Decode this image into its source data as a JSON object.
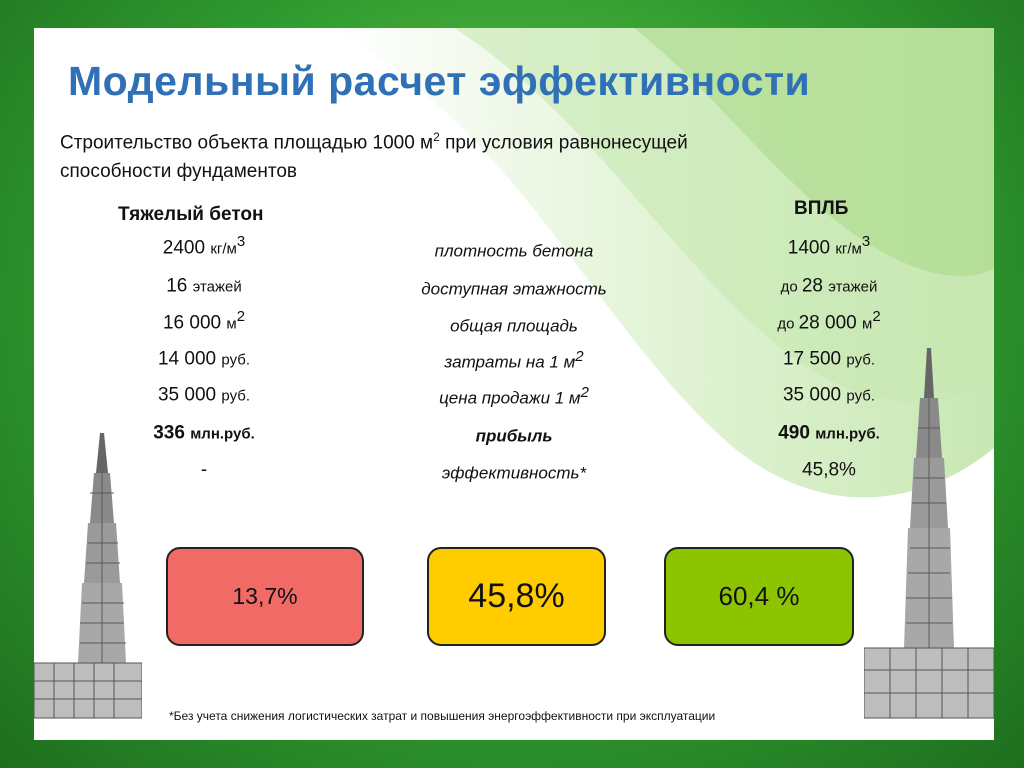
{
  "title": "Модельный расчет эффективности",
  "subtitle": {
    "line1_before": "Строительство объекта площадью 1000 м",
    "line1_sup": "2",
    "line1_after": " при условия равнонесущей",
    "line2": "способности фундаментов"
  },
  "columns": {
    "left": "Тяжелый бетон",
    "right": "ВПЛБ"
  },
  "rows": [
    {
      "left_num": "2400 ",
      "left_unit": "кг/м",
      "left_sup": "3",
      "mid": "плотность бетона",
      "mid_sup": "",
      "right_prefix": "",
      "right_num": "1400 ",
      "right_unit": "кг/м",
      "right_sup": "3"
    },
    {
      "left_num": "16 ",
      "left_unit": "этажей",
      "left_sup": "",
      "mid": "доступная этажность",
      "mid_sup": "",
      "right_prefix": "до ",
      "right_num": "28 ",
      "right_unit": "этажей",
      "right_sup": ""
    },
    {
      "left_num": "16 000 ",
      "left_unit": "м",
      "left_sup": "2",
      "mid": "общая площадь",
      "mid_sup": "",
      "right_prefix": "до ",
      "right_num": "28 000 ",
      "right_unit": "м",
      "right_sup": "2"
    },
    {
      "left_num": "14 000 ",
      "left_unit": "руб.",
      "left_sup": "",
      "mid": "затраты на 1 м",
      "mid_sup": "2",
      "right_prefix": "",
      "right_num": "17 500 ",
      "right_unit": "руб.",
      "right_sup": ""
    },
    {
      "left_num": "35 000 ",
      "left_unit": "руб.",
      "left_sup": "",
      "mid": "цена продажи 1 м",
      "mid_sup": "2",
      "right_prefix": "",
      "right_num": "35 000 ",
      "right_unit": "руб.",
      "right_sup": ""
    },
    {
      "left_num": "336 ",
      "left_unit": "млн.руб.",
      "left_sup": "",
      "mid": "прибыль",
      "mid_sup": "",
      "right_prefix": "",
      "right_num": "490 ",
      "right_unit": "млн.руб.",
      "right_sup": ""
    },
    {
      "left_num": "-",
      "left_unit": "",
      "left_sup": "",
      "mid": "эффективность*",
      "mid_sup": "",
      "right_prefix": "",
      "right_num": "45,8%",
      "right_unit": "",
      "right_sup": ""
    }
  ],
  "boxes": [
    {
      "value": "13,7%",
      "color": "#f26a65"
    },
    {
      "value": "45,8%",
      "color": "#ffcc00"
    },
    {
      "value": "60,4 %",
      "color": "#8cc400"
    }
  ],
  "footnote": "*Без учета снижения логистических затрат и повышения энергоэффективности при эксплуатации",
  "colors": {
    "title": "#2f70b6",
    "frame": "#2f9a2f"
  }
}
